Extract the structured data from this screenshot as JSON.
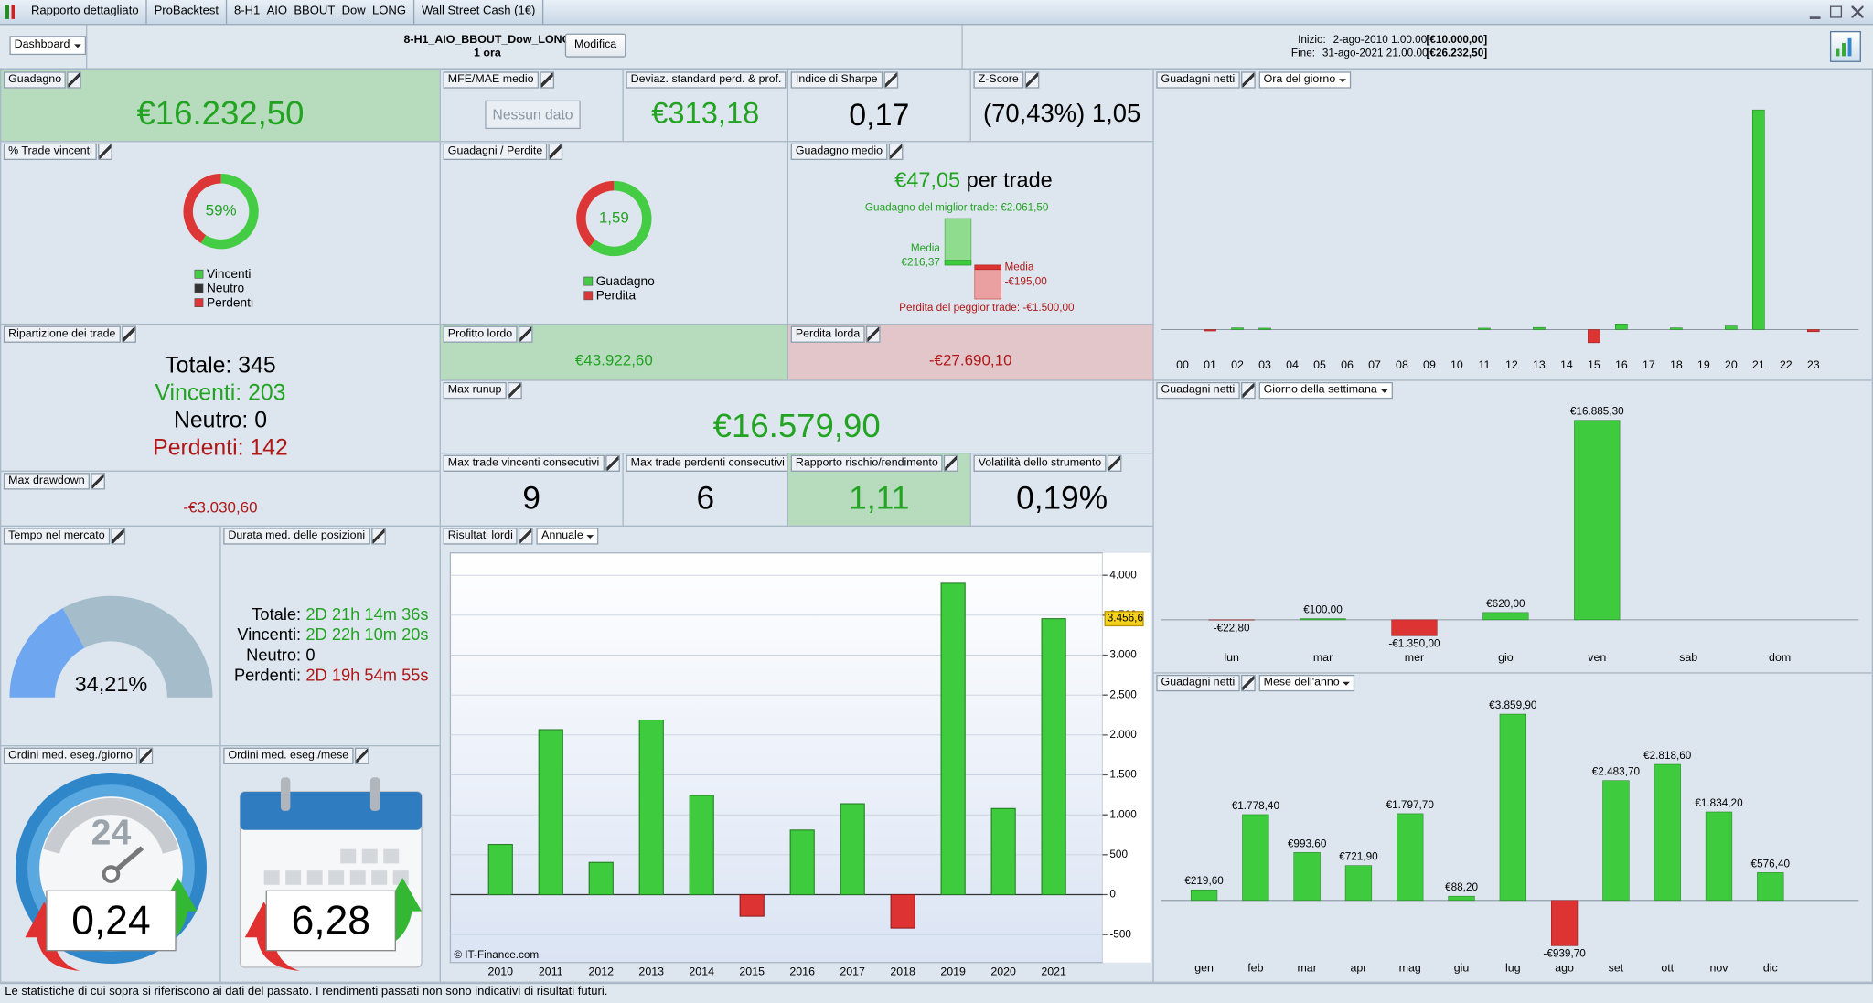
{
  "title_bar": {
    "tabs": [
      "Rapporto dettagliato",
      "ProBacktest",
      "8-H1_AIO_BBOUT_Dow_LONG",
      "Wall Street Cash (1€)"
    ]
  },
  "toolbar": {
    "dashboard": "Dashboard",
    "strategy": "8-H1_AIO_BBOUT_Dow_LONG",
    "timeframe": "1 ora",
    "button": "Modifica",
    "start_label": "Inizio:",
    "start": "2-ago-2010 1.00.00",
    "start_capital": "[€10.000,00]",
    "end_label": "Fine:",
    "end": "31-ago-2021 21.00.00",
    "end_capital": "[€26.232,50]"
  },
  "panels": {
    "gain": {
      "title": "Guadagno",
      "value": "€16.232,50"
    },
    "mfe_mae": {
      "title": "MFE/MAE medio",
      "value": "Nessun dato"
    },
    "std_dev": {
      "title": "Deviaz. standard perd. & prof.",
      "value": "€313,18"
    },
    "sharpe": {
      "title": "Indice di Sharpe",
      "value": "0,17"
    },
    "z_score": {
      "title": "Z-Score",
      "value": "(70,43%) 1,05"
    },
    "win_rate": {
      "title": "% Trade vincenti",
      "value": 59,
      "value_label": "59%",
      "legend": [
        "Vincenti",
        "Neutro",
        "Perdenti"
      ]
    },
    "gain_loss": {
      "title": "Guadagni / Perdite",
      "value": 1.59,
      "value_label": "1,59",
      "legend": [
        "Guadagno",
        "Perdita"
      ]
    },
    "avg_gain": {
      "title": "Guadagno medio",
      "value": "€47,05",
      "unit": "per trade",
      "best_label": "Guadagno del miglior trade:",
      "best": {
        "value": 2061.5,
        "label": "€2.061,50"
      },
      "avg_win_label": "Media",
      "avg_win": {
        "value": 216.37,
        "label": "€216,37"
      },
      "avg_loss_label": "Media",
      "avg_loss": {
        "value": -195,
        "label": "-€195,00"
      },
      "worst_label": "Perdita del peggior trade:",
      "worst": {
        "value": -1500,
        "label": "-€1.500,00"
      }
    },
    "breakdown": {
      "title": "Ripartizione dei trade",
      "rows": [
        "Totale: 345",
        "Vincenti: 203",
        "Neutro: 0",
        "Perdenti: 142"
      ]
    },
    "gross_profit": {
      "title": "Profitto lordo",
      "value": "€43.922,60"
    },
    "gross_loss": {
      "title": "Perdita lorda",
      "value": "-€27.690,10"
    },
    "max_runup": {
      "title": "Max runup",
      "value": "€16.579,90"
    },
    "max_drawdown": {
      "title": "Max drawdown",
      "value": "-€3.030,60"
    },
    "max_win_streak": {
      "title": "Max trade vincenti consecutivi",
      "value": "9"
    },
    "max_loss_streak": {
      "title": "Max trade perdenti consecutivi",
      "value": "6"
    },
    "risk_reward": {
      "title": "Rapporto rischio/rendimento",
      "value": "1,11"
    },
    "volatility": {
      "title": "Volatilità dello strumento",
      "value": "0,19%"
    },
    "time_in_market": {
      "title": "Tempo nel mercato",
      "value": 34.21,
      "value_label": "34,21%"
    },
    "avg_duration": {
      "title": "Durata med. delle posizioni",
      "rows": [
        {
          "label": "Totale:",
          "value": "2D 21h 14m 36s"
        },
        {
          "label": "Vincenti:",
          "value": "2D 22h 10m 20s"
        },
        {
          "label": "Neutro:",
          "value": "0"
        },
        {
          "label": "Perdenti:",
          "value": "2D 19h 54m 55s"
        }
      ]
    },
    "orders_day": {
      "title": "Ordini med. eseg./giorno",
      "icon_label": "24",
      "value": "0,24"
    },
    "orders_month": {
      "title": "Ordini med. eseg./mese",
      "value": "6,28"
    },
    "gross_results": {
      "title": "Risultati lordi",
      "period": "Annuale",
      "credit": "© IT-Finance.com"
    },
    "net_hour": {
      "title": "Guadagni netti",
      "period": "Ora del giorno"
    },
    "net_weekday": {
      "title": "Guadagni netti",
      "period": "Giorno della settimana"
    },
    "net_month": {
      "title": "Guadagni netti",
      "period": "Mese dell'anno"
    }
  },
  "chart_data": [
    {
      "type": "bar",
      "categories": [
        "00",
        "01",
        "02",
        "03",
        "04",
        "05",
        "06",
        "07",
        "08",
        "09",
        "10",
        "11",
        "12",
        "13",
        "14",
        "15",
        "16",
        "17",
        "18",
        "19",
        "20",
        "21",
        "22",
        "23"
      ],
      "values": [
        0,
        -100,
        120,
        100,
        0,
        0,
        0,
        0,
        0,
        0,
        0,
        100,
        0,
        150,
        0,
        -930,
        400,
        0,
        120,
        0,
        250,
        15550,
        0,
        -150
      ],
      "colors": {
        "positive": "#3ecc3e",
        "negative": "#dd3333"
      }
    },
    {
      "type": "bar",
      "categories": [
        "lun",
        "mar",
        "mer",
        "gio",
        "ven",
        "sab",
        "dom"
      ],
      "values": [
        -22.8,
        100,
        -1350,
        620,
        16885.3,
        0,
        0
      ],
      "value_labels": [
        "-€22,80",
        "€100,00",
        "-€1.350,00",
        "€620,00",
        "€16.885,30",
        null,
        null
      ],
      "colors": {
        "positive": "#3ecc3e",
        "negative": "#dd3333"
      }
    },
    {
      "type": "bar",
      "categories": [
        "gen",
        "feb",
        "mar",
        "apr",
        "mag",
        "giu",
        "lug",
        "ago",
        "set",
        "ott",
        "nov",
        "dic"
      ],
      "values": [
        219.6,
        1778.4,
        993.6,
        721.9,
        1797.7,
        88.2,
        3859.9,
        -939.7,
        2483.7,
        2818.6,
        1834.2,
        576.4
      ],
      "value_labels": [
        "€219,60",
        "€1.778,40",
        "€993,60",
        "€721,90",
        "€1.797,70",
        "€88,20",
        "€3.859,90",
        "-€939,70",
        "€2.483,70",
        "€2.818,60",
        "€1.834,20",
        "€576,40"
      ],
      "colors": {
        "positive": "#3ecc3e",
        "negative": "#dd3333"
      }
    },
    {
      "type": "bar",
      "categories": [
        "2010",
        "2011",
        "2012",
        "2013",
        "2014",
        "2015",
        "2016",
        "2017",
        "2018",
        "2019",
        "2020",
        "2021"
      ],
      "values": [
        629,
        2067,
        404,
        2187,
        1243,
        -270,
        809,
        1139,
        -419,
        3900,
        1079,
        3456.6
      ],
      "ylim": [
        -850,
        4280
      ],
      "yticks": [
        {
          "value": 4000,
          "label": "4.000"
        },
        {
          "value": 3500,
          "label": "3.500"
        },
        {
          "value": 3000,
          "label": "3.000"
        },
        {
          "value": 2500,
          "label": "2.500"
        },
        {
          "value": 2000,
          "label": "2.000"
        },
        {
          "value": 1500,
          "label": "1.500"
        },
        {
          "value": 1000,
          "label": "1.000"
        },
        500,
        0,
        -500
      ],
      "grid": true,
      "marker": {
        "value": 3456.6,
        "label": "3.456,6"
      },
      "colors": {
        "positive": "#3ecc3e",
        "negative": "#dd3333"
      }
    }
  ],
  "footer": "Le statistiche di cui sopra si riferiscono ai dati del passato. I rendimenti passati non sono indicativi di risultati futuri."
}
